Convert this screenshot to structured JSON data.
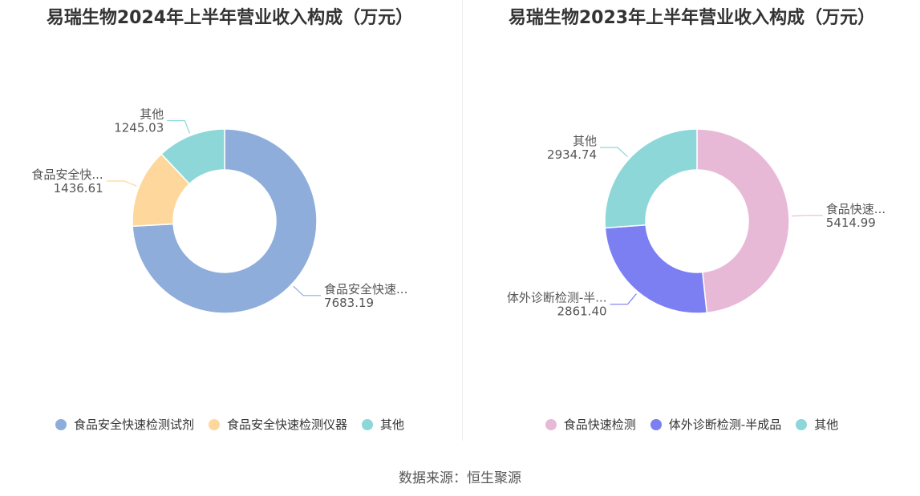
{
  "source": "数据来源：恒生聚源",
  "chart_data": [
    {
      "type": "pie",
      "title": "易瑞生物2024年上半年营业收入构成（万元）",
      "series": [
        {
          "name": "食品安全快速检测试剂",
          "short_label": "食品安全快速...",
          "value": 7683.19,
          "value_text": "7683.19",
          "color": "#8eaddb"
        },
        {
          "name": "食品安全快速检测仪器",
          "short_label": "食品安全快...",
          "value": 1436.61,
          "value_text": "1436.61",
          "color": "#fed79c"
        },
        {
          "name": "其他",
          "short_label": "其他",
          "value": 1245.03,
          "value_text": "1245.03",
          "color": "#8dd7d9"
        }
      ],
      "legend_position": "bottom"
    },
    {
      "type": "pie",
      "title": "易瑞生物2023年上半年营业收入构成（万元）",
      "series": [
        {
          "name": "食品快速检测",
          "short_label": "食品快速...",
          "value": 5414.99,
          "value_text": "5414.99",
          "color": "#e8b9d7"
        },
        {
          "name": "体外诊断检测-半成品",
          "short_label": "体外诊断检测-半...",
          "value": 2861.4,
          "value_text": "2861.40",
          "color": "#7b7ff2"
        },
        {
          "name": "其他",
          "short_label": "其他",
          "value": 2934.74,
          "value_text": "2934.74",
          "color": "#8dd7d9"
        }
      ],
      "legend_position": "bottom"
    }
  ]
}
